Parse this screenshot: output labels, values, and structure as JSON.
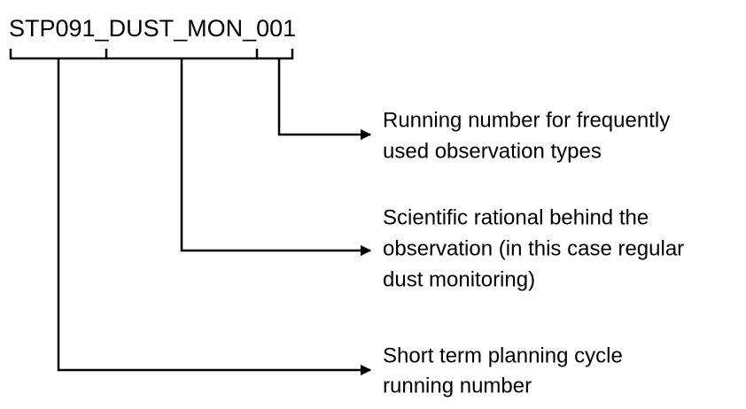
{
  "code": "STP091_DUST_MON_001",
  "parts": [
    {
      "lines": [
        "Running number for frequently",
        "used observation types"
      ]
    },
    {
      "lines": [
        "Scientific rational behind the",
        "observation (in this case regular",
        "dust monitoring)"
      ]
    },
    {
      "lines": [
        "Short term planning cycle",
        "running number"
      ]
    }
  ]
}
